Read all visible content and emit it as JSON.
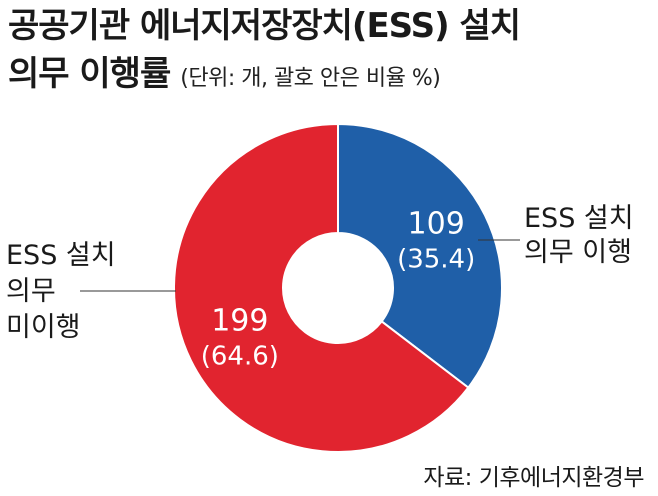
{
  "title_line1": "공공기관 에너지저장장치(ESS) 설치",
  "title_line2": "의무 이행률",
  "unit_note": "(단위: 개, 괄호 안은 비율 %)",
  "source": "자료: 기후에너지환경부",
  "chart_data": {
    "type": "pie",
    "donut": true,
    "slices": [
      {
        "label_lines": [
          "ESS 설치",
          "의무 이행"
        ],
        "value": 109,
        "value_label": "109",
        "percent_label": "(35.4)",
        "color": "#1f5fa8"
      },
      {
        "label_lines": [
          "ESS 설치",
          "의무",
          "미이행"
        ],
        "value": 199,
        "value_label": "199",
        "percent_label": "(64.6)",
        "color": "#e1242f"
      }
    ]
  }
}
